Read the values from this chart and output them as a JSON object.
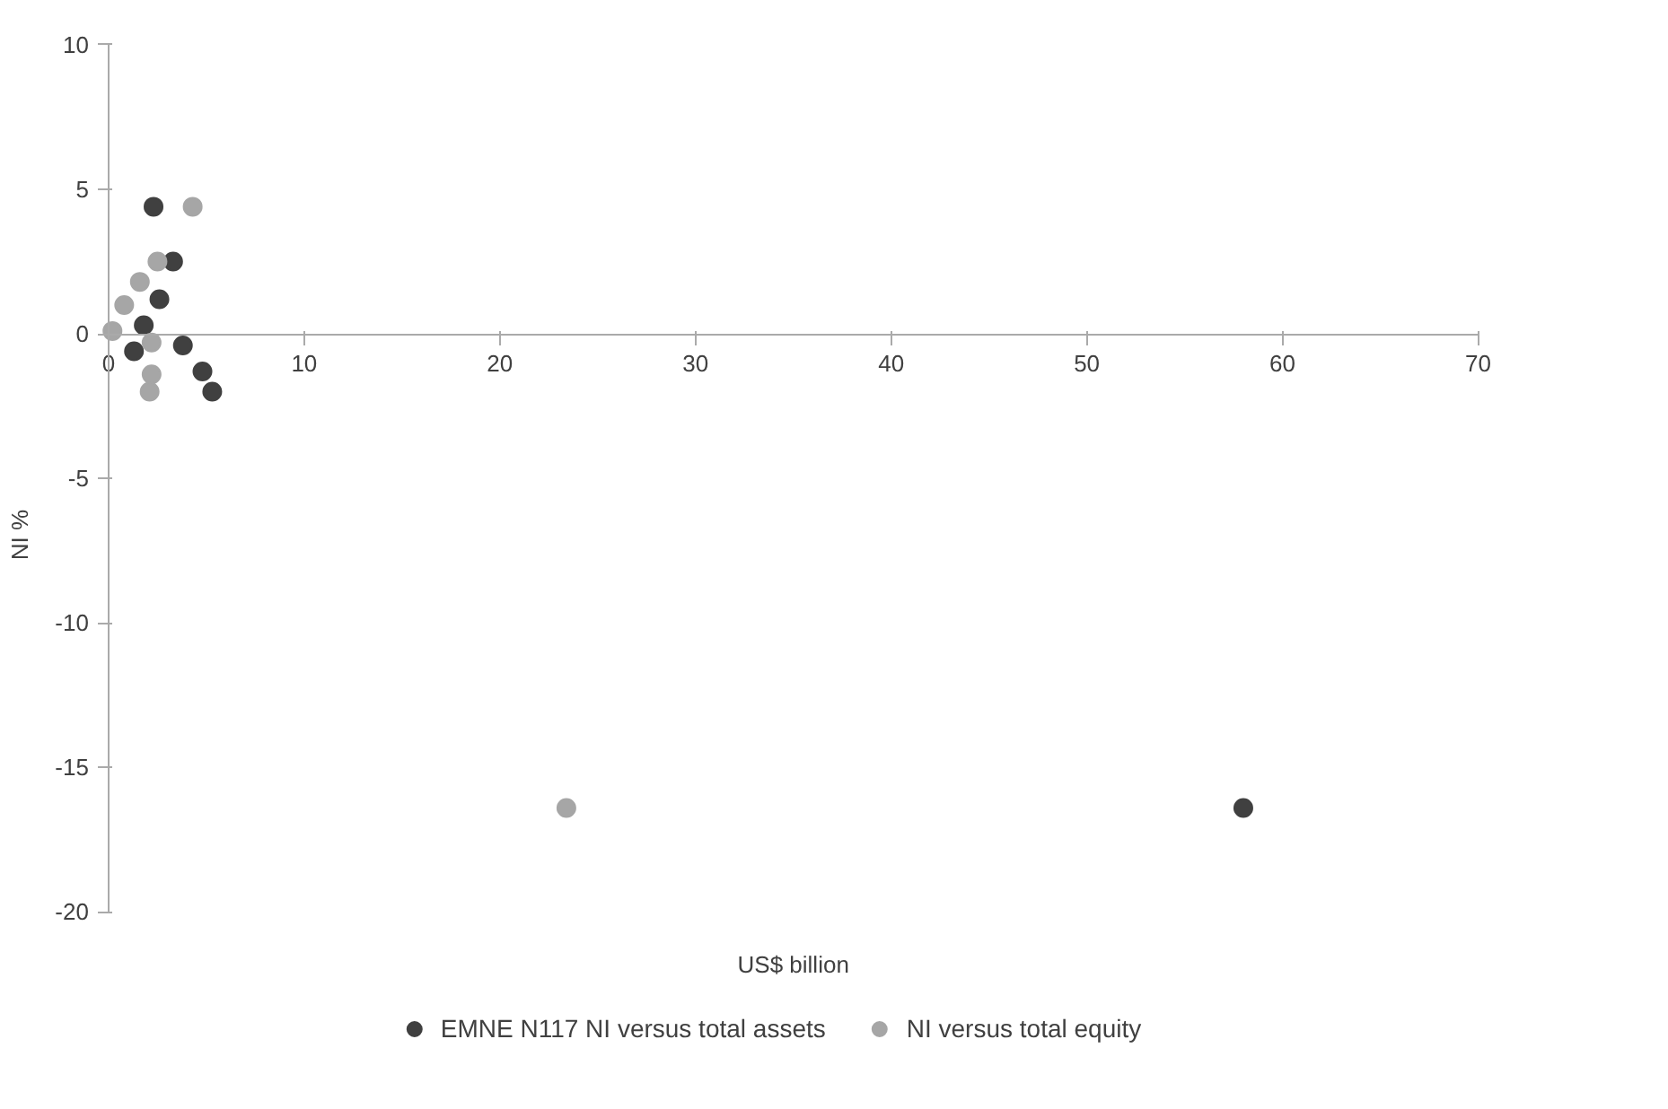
{
  "chart_data": {
    "type": "scatter",
    "xlabel": "US$ billion",
    "ylabel": "NI %",
    "xlim": [
      0,
      70
    ],
    "ylim": [
      -20,
      10
    ],
    "xticks": [
      0,
      10,
      20,
      30,
      40,
      50,
      60,
      70
    ],
    "yticks": [
      -20,
      -15,
      -10,
      -5,
      0,
      5,
      10
    ],
    "grid": false,
    "legend": "bottom",
    "marker": "circle",
    "series": [
      {
        "name": "EMNE N117 NI versus total assets",
        "color": "#404040",
        "x": [
          2.3,
          3.3,
          2.6,
          1.8,
          1.3,
          3.8,
          4.8,
          5.3,
          58.0
        ],
        "values": [
          4.4,
          2.5,
          1.2,
          0.3,
          -0.6,
          -0.4,
          -1.3,
          -2.0,
          -16.4
        ]
      },
      {
        "name": "NI versus total equity",
        "color": "#a6a6a6",
        "x": [
          4.3,
          2.5,
          1.6,
          0.8,
          0.2,
          2.2,
          2.2,
          2.1,
          23.4
        ],
        "values": [
          4.4,
          2.5,
          1.8,
          1.0,
          0.1,
          -0.3,
          -1.4,
          -2.0,
          -16.4
        ]
      }
    ]
  }
}
